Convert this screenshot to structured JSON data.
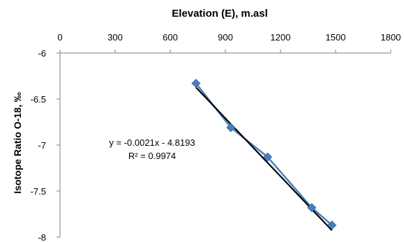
{
  "chart_data": {
    "type": "scatter",
    "title": "Elevation (E), m.asl",
    "xlabel": "",
    "ylabel": "Isotope Ratio O-18, ‰",
    "xlim": [
      0,
      1800
    ],
    "ylim": [
      -8,
      -6
    ],
    "x_ticks": [
      "0",
      "300",
      "600",
      "900",
      "1200",
      "1500",
      "1800"
    ],
    "y_ticks": [
      "-6",
      "-6.5",
      "-7",
      "-7.5",
      "-8"
    ],
    "x_axis_position": "top",
    "grid": false,
    "legend": "none",
    "series": [
      {
        "color": "#4a7ebb",
        "marker": "diamond",
        "connected": true,
        "points": [
          {
            "x": 740,
            "y": -6.33
          },
          {
            "x": 930,
            "y": -6.81
          },
          {
            "x": 1130,
            "y": -7.13
          },
          {
            "x": 1370,
            "y": -7.68
          },
          {
            "x": 1480,
            "y": -7.87
          }
        ]
      }
    ],
    "trendline": {
      "type": "linear",
      "slope": -0.0021,
      "intercept": -4.8193,
      "x_range": [
        740,
        1480
      ],
      "color": "#000000"
    },
    "annotations": {
      "equation": "y = -0.0021x - 4.8193",
      "r_squared": "R² = 0.9974"
    }
  }
}
